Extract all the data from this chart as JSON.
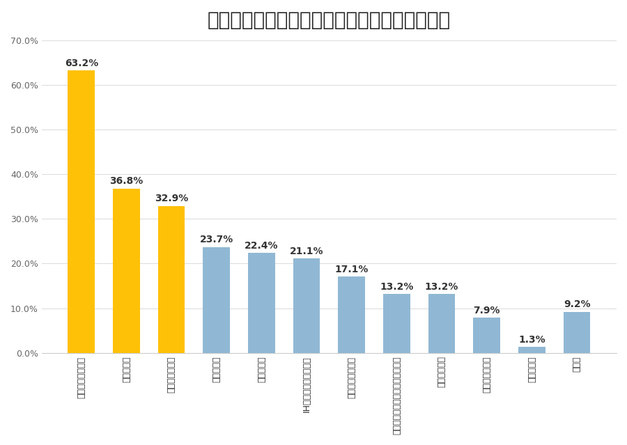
{
  "title": "》一戸建て》水回りにつけてよかった住宅設備",
  "title_display": "【一戸建て】水回りにつけてよかった住宅設備",
  "categories": [
    "ビルトイン食洗機",
    "浴室乾燥機",
    "シャワー式水栓",
    "パントリー",
    "トイレ暖設",
    "IHクッキングヒーター",
    "手洗いカウンター",
    "引き出し式のフロアキャビネット",
    "浴室エアコン",
    "自動洗浄換気扇",
    "浴室テレビ",
    "その他"
  ],
  "values": [
    63.2,
    36.8,
    32.9,
    23.7,
    22.4,
    21.1,
    17.1,
    13.2,
    13.2,
    7.9,
    1.3,
    9.2
  ],
  "bar_colors": [
    "#FFC107",
    "#FFC107",
    "#FFC107",
    "#90B8D4",
    "#90B8D4",
    "#90B8D4",
    "#90B8D4",
    "#90B8D4",
    "#90B8D4",
    "#90B8D4",
    "#90B8D4",
    "#90B8D4"
  ],
  "ylim": [
    0,
    70
  ],
  "yticks": [
    0,
    10,
    20,
    30,
    40,
    50,
    60,
    70
  ],
  "ytick_labels": [
    "0.0%",
    "10.0%",
    "20.0%",
    "30.0%",
    "40.0%",
    "50.0%",
    "60.0%",
    "70.0%"
  ],
  "title_fontsize": 20,
  "tick_label_fontsize": 9,
  "background_color": "#ffffff",
  "grid_color": "#dddddd",
  "bar_label_fontsize": 10
}
